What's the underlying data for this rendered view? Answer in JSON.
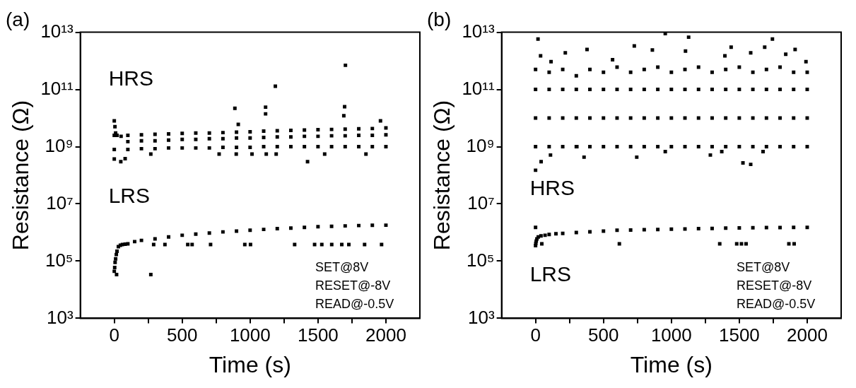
{
  "chart_data": [
    {
      "type": "scatter",
      "title": "(a)",
      "xlabel": "Time (s)",
      "ylabel": "Resistance (Ω)",
      "log": "y",
      "marker": "square",
      "xlim": [
        -250,
        2250
      ],
      "xticks": [
        0,
        {
          "value": 250,
          "label": null
        },
        500,
        {
          "value": 750,
          "label": null
        },
        1000,
        {
          "value": 1250,
          "label": null
        },
        1500,
        {
          "value": 1750,
          "label": null
        },
        2000
      ],
      "ylim": [
        1000,
        10000000000000
      ],
      "yticks": [
        {
          "value": 1000,
          "label": "10³"
        },
        {
          "value": 100000,
          "label": "10⁵"
        },
        {
          "value": 10000000,
          "label": "10⁷"
        },
        {
          "value": 1000000000,
          "label": "10⁹"
        },
        {
          "value": 100000000000,
          "label": "10¹¹"
        },
        {
          "value": 10000000000000,
          "label": "10¹³"
        }
      ],
      "annotations": [
        "SET@8V",
        "RESET@-8V",
        "READ@-0.5V"
      ],
      "series": [
        {
          "name": "HRS",
          "color": "#000000",
          "x": [
            0,
            0,
            0,
            5,
            10,
            20,
            50,
            100,
            100,
            100,
            200,
            200,
            200,
            300,
            300,
            300,
            400,
            400,
            400,
            500,
            500,
            500,
            600,
            600,
            600,
            700,
            700,
            700,
            800,
            800,
            800,
            900,
            900,
            900,
            1000,
            1000,
            1000,
            1100,
            1100,
            1100,
            1200,
            1200,
            1200,
            1300,
            1300,
            1300,
            1400,
            1400,
            1400,
            1500,
            1500,
            1500,
            1600,
            1600,
            1600,
            1700,
            1700,
            1700,
            1800,
            1800,
            1800,
            1900,
            1900,
            1900,
            2000,
            2000,
            2000,
            1702,
            1186,
            888,
            913,
            1114,
            1114,
            1696,
            1423,
            0,
            48,
            80,
            269,
            772,
            898,
            1014,
            1119,
            1192,
            1549,
            1853,
            1690,
            1960
          ],
          "values": [
            8000000000,
            2500000000,
            800000000,
            5000000000,
            3000000000,
            2500000000,
            2300000000,
            2500000000,
            1500000000,
            800000000,
            2600000000,
            1600000000,
            850000000,
            2700000000,
            1600000000,
            850000000,
            2800000000,
            1700000000,
            900000000,
            2900000000,
            1800000000,
            900000000,
            3000000000,
            1800000000,
            900000000,
            3000000000,
            1900000000,
            900000000,
            3100000000,
            1900000000,
            950000000,
            3200000000,
            2000000000,
            950000000,
            3300000000,
            2000000000,
            950000000,
            3500000000,
            2100000000,
            1000000000,
            3600000000,
            2200000000,
            1000000000,
            3700000000,
            2200000000,
            1000000000,
            3800000000,
            2300000000,
            1000000000,
            3900000000,
            2300000000,
            1000000000,
            4000000000,
            2400000000,
            1000000000,
            4100000000,
            2400000000,
            1000000000,
            4200000000,
            2500000000,
            1000000000,
            4300000000,
            2500000000,
            1000000000,
            4500000000,
            2600000000,
            1000000000,
            700000000000,
            130000000000,
            22000000000,
            6000000000,
            24000000000,
            14000000000,
            25000000000,
            300000000,
            370000000,
            300000000,
            380000000,
            550000000,
            550000000,
            550000000,
            550000000,
            550000000,
            550000000,
            550000000,
            550000000,
            12000000000,
            8000000000
          ]
        },
        {
          "name": "LRS",
          "color": "#000000",
          "x": [
            0,
            3,
            6,
            10,
            15,
            20,
            30,
            45,
            60,
            80,
            100,
            150,
            200,
            300,
            400,
            500,
            600,
            700,
            800,
            900,
            1000,
            1100,
            1200,
            1300,
            1400,
            1500,
            1600,
            1700,
            1800,
            1900,
            2000,
            290,
            373,
            541,
            573,
            709,
            961,
            1003,
            1328,
            1475,
            1528,
            1601,
            1675,
            1727,
            1843,
            1968,
            17,
            269
          ],
          "values": [
            44000,
            60000,
            90000,
            120000,
            170000,
            220000,
            320000,
            360000,
            380000,
            390000,
            400000,
            480000,
            530000,
            600000,
            700000,
            800000,
            880000,
            960000,
            1050000,
            1120000,
            1200000,
            1280000,
            1360000,
            1430000,
            1500000,
            1600000,
            1650000,
            1700000,
            1750000,
            1780000,
            1800000,
            380000,
            380000,
            380000,
            380000,
            380000,
            380000,
            380000,
            380000,
            380000,
            380000,
            380000,
            380000,
            380000,
            380000,
            380000,
            34000,
            34000
          ]
        }
      ]
    },
    {
      "type": "scatter",
      "title": "(b)",
      "xlabel": "Time (s)",
      "ylabel": "Resistance (Ω)",
      "log": "y",
      "marker": "square",
      "xlim": [
        -250,
        2250
      ],
      "xticks": [
        0,
        {
          "value": 250,
          "label": null
        },
        500,
        {
          "value": 750,
          "label": null
        },
        1000,
        {
          "value": 1250,
          "label": null
        },
        1500,
        {
          "value": 1750,
          "label": null
        },
        2000
      ],
      "ylim": [
        1000,
        10000000000000
      ],
      "yticks": [
        {
          "value": 1000,
          "label": "10³"
        },
        {
          "value": 100000,
          "label": "10⁵"
        },
        {
          "value": 10000000,
          "label": "10⁷"
        },
        {
          "value": 1000000000,
          "label": "10⁹"
        },
        {
          "value": 100000000000,
          "label": "10¹¹"
        },
        {
          "value": 10000000000000,
          "label": "10¹³"
        }
      ],
      "annotations": [
        "SET@8V",
        "RESET@-8V",
        "READ@-0.5V"
      ],
      "series": [
        {
          "name": "HRS",
          "color": "#000000",
          "x": [
            0,
            0,
            0,
            0,
            100,
            100,
            100,
            100,
            200,
            200,
            200,
            200,
            300,
            300,
            300,
            300,
            400,
            400,
            400,
            400,
            500,
            500,
            500,
            500,
            600,
            600,
            600,
            600,
            700,
            700,
            700,
            700,
            800,
            800,
            800,
            800,
            900,
            900,
            900,
            900,
            1000,
            1000,
            1000,
            1000,
            1100,
            1100,
            1100,
            1100,
            1200,
            1200,
            1200,
            1200,
            1300,
            1300,
            1300,
            1300,
            1400,
            1400,
            1400,
            1400,
            1500,
            1500,
            1500,
            1500,
            1600,
            1600,
            1600,
            1600,
            1700,
            1700,
            1700,
            1700,
            1800,
            1800,
            1800,
            1800,
            1900,
            1900,
            1900,
            1900,
            2000,
            2000,
            2000,
            2000,
            18,
            37,
            114,
            219,
            379,
            567,
            727,
            860,
            955,
            1127,
            1104,
            1440,
            1584,
            1687,
            1744,
            1842,
            1911,
            1991,
            1394,
            0,
            41,
            110,
            357,
            745,
            1287,
            1371,
            1527,
            1584,
            304,
            955,
            1675
          ],
          "values": [
            500000000000,
            100000000000,
            10000000000,
            1000000000,
            400000000000,
            100000000000,
            10000000000,
            1000000000,
            500000000000,
            100000000000,
            10000000000,
            1000000000,
            300000000000,
            100000000000,
            10000000000,
            1000000000,
            500000000000,
            100000000000,
            10000000000,
            1000000000,
            400000000000,
            100000000000,
            10000000000,
            1000000000,
            600000000000,
            100000000000,
            10000000000,
            1000000000,
            400000000000,
            100000000000,
            10000000000,
            1000000000,
            500000000000,
            100000000000,
            10000000000,
            1000000000,
            600000000000,
            100000000000,
            10000000000,
            1000000000,
            400000000000,
            100000000000,
            10000000000,
            1000000000,
            500000000000,
            100000000000,
            10000000000,
            1000000000,
            600000000000,
            100000000000,
            10000000000,
            1000000000,
            400000000000,
            100000000000,
            10000000000,
            1000000000,
            500000000000,
            100000000000,
            10000000000,
            1000000000,
            600000000000,
            100000000000,
            10000000000,
            1000000000,
            400000000000,
            100000000000,
            10000000000,
            1000000000,
            500000000000,
            100000000000,
            10000000000,
            1000000000,
            600000000000,
            100000000000,
            10000000000,
            1000000000,
            400000000000,
            100000000000,
            10000000000,
            1000000000,
            400000000000,
            100000000000,
            10000000000,
            1000000000,
            5800000000000,
            1500000000000,
            940000000000,
            1900000000000,
            2500000000000,
            1100000000000,
            3300000000000,
            2400000000000,
            9000000000000,
            6700000000000,
            2200000000000,
            3000000000000,
            1900000000000,
            3000000000000,
            5800000000000,
            1700000000000,
            2500000000000,
            940000000000,
            1500000000000,
            150000000,
            300000000,
            510000000,
            430000000,
            430000000,
            510000000,
            670000000,
            270000000,
            240000000,
            1000000000,
            670000000,
            670000000
          ]
        },
        {
          "name": "LRS",
          "color": "#000000",
          "x": [
            0,
            0,
            2,
            5,
            10,
            20,
            40,
            70,
            100,
            150,
            200,
            300,
            400,
            500,
            600,
            700,
            800,
            900,
            1000,
            1100,
            1200,
            1300,
            1400,
            1500,
            1600,
            1700,
            1800,
            1900,
            2000,
            46,
            617,
            1356,
            1481,
            1516,
            1550,
            1865,
            1904
          ],
          "values": [
            350000,
            1500000,
            420000,
            500000,
            600000,
            700000,
            760000,
            800000,
            850000,
            900000,
            930000,
            1000000,
            1060000,
            1120000,
            1200000,
            1220000,
            1250000,
            1270000,
            1300000,
            1330000,
            1360000,
            1390000,
            1420000,
            1450000,
            1470000,
            1480000,
            1490000,
            1500000,
            1500000,
            400000,
            400000,
            400000,
            400000,
            400000,
            400000,
            400000,
            400000
          ]
        }
      ]
    }
  ]
}
